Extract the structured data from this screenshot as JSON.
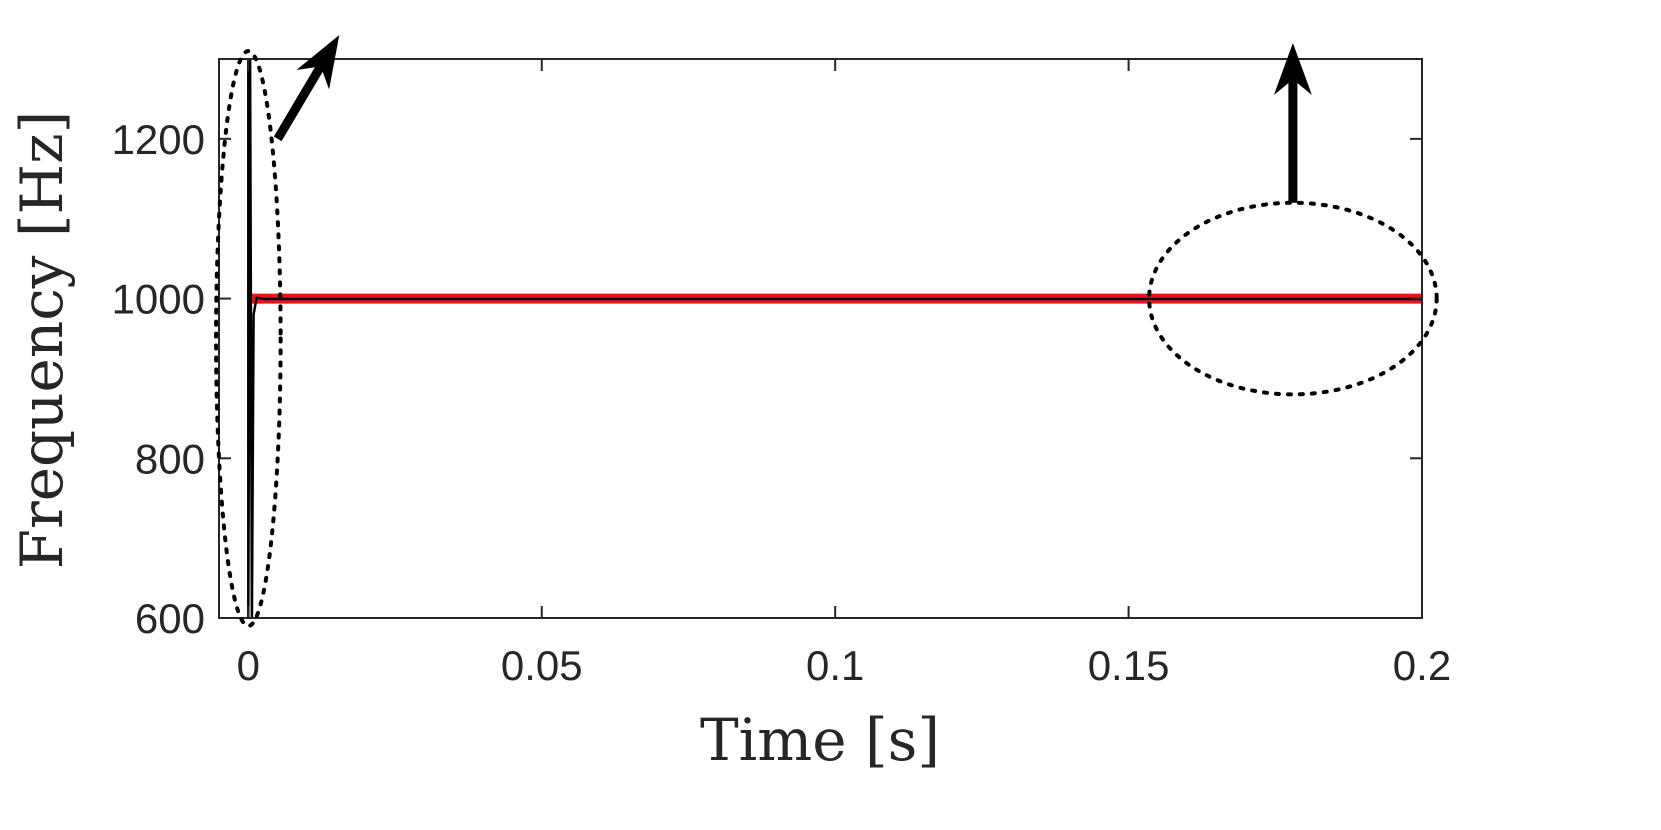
{
  "chart_data": {
    "type": "line",
    "title": "",
    "xlabel": "Time [s]",
    "ylabel": "Frequency [Hz]",
    "xlim": [
      -0.005,
      0.2
    ],
    "ylim": [
      600,
      1300
    ],
    "xticks": [
      0,
      0.05,
      0.1,
      0.15,
      0.2
    ],
    "xtick_labels": [
      "0",
      "0.05",
      "0.1",
      "0.15",
      "0.2"
    ],
    "yticks": [
      600,
      800,
      1000,
      1200
    ],
    "ytick_labels": [
      "600",
      "800",
      "1000",
      "1200"
    ],
    "grid": false,
    "legend": "none",
    "series": [
      {
        "color": "#e8141b",
        "x": [
          0,
          0.2
        ],
        "y": [
          1000,
          1000
        ]
      },
      {
        "color": "#000000",
        "x": [
          0,
          0,
          0.0003,
          0.0006,
          0.0009,
          0.0014,
          0.003,
          0.2
        ],
        "y": [
          1300,
          600,
          1300,
          600,
          980,
          1001,
          999.5,
          999.5
        ]
      }
    ],
    "annotations": [
      {
        "type": "dotted-ellipse",
        "cx": 0,
        "cy": 950,
        "rx": 0.0055,
        "ry": 360,
        "arrow_from": [
          0.005,
          1200
        ],
        "arrow_to": [
          0.0155,
          1330
        ]
      },
      {
        "type": "dotted-ellipse",
        "cx": 0.178,
        "cy": 1000,
        "rx": 0.0245,
        "ry": 120,
        "arrow_from": [
          0.178,
          1120
        ],
        "arrow_to": [
          0.178,
          1320
        ]
      }
    ]
  }
}
